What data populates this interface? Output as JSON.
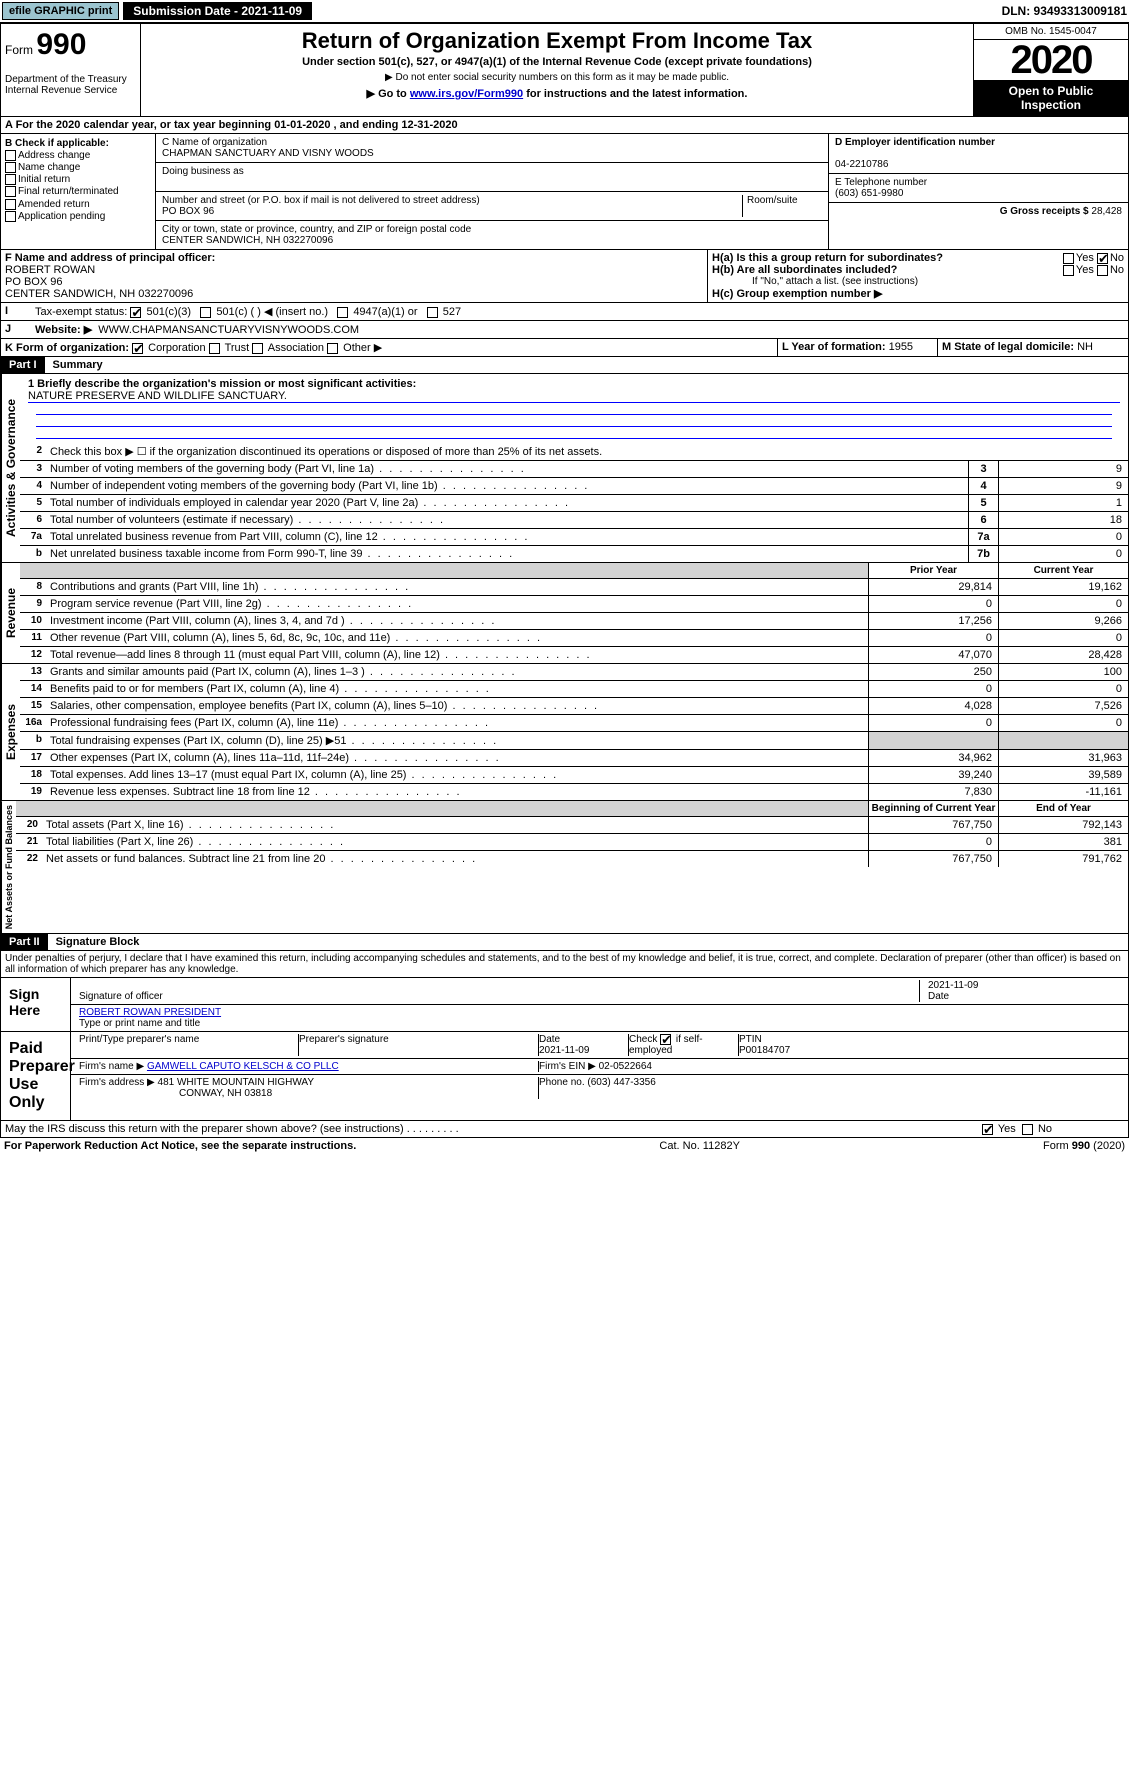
{
  "topbar": {
    "efile": "efile GRAPHIC print",
    "sub": "Submission Date - 2021-11-09",
    "dln": "DLN: 93493313009181"
  },
  "header": {
    "form_label": "Form",
    "form_num": "990",
    "dept": "Department of the Treasury Internal Revenue Service",
    "title": "Return of Organization Exempt From Income Tax",
    "sub": "Under section 501(c), 527, or 4947(a)(1) of the Internal Revenue Code (except private foundations)",
    "note1": "▶ Do not enter social security numbers on this form as it may be made public.",
    "note2": "▶ Go to www.irs.gov/Form990 for instructions and the latest information.",
    "go_link": "www.irs.gov/Form990",
    "omb": "OMB No. 1545-0047",
    "year": "2020",
    "open": "Open to Public Inspection"
  },
  "A": "A For the 2020 calendar year, or tax year beginning 01-01-2020    , and ending 12-31-2020",
  "B": {
    "label": "B Check if applicable:",
    "items": [
      "Address change",
      "Name change",
      "Initial return",
      "Final return/terminated",
      "Amended return",
      "Application pending"
    ]
  },
  "C": {
    "name_label": "C Name of organization",
    "name": "CHAPMAN SANCTUARY AND VISNY WOODS",
    "dba_label": "Doing business as",
    "dba": "",
    "addr_label": "Number and street (or P.O. box if mail is not delivered to street address)",
    "room": "Room/suite",
    "addr": "PO BOX 96",
    "city_label": "City or town, state or province, country, and ZIP or foreign postal code",
    "city": "CENTER SANDWICH, NH  032270096"
  },
  "D": {
    "label": "D Employer identification number",
    "val": "04-2210786"
  },
  "E": {
    "label": "E Telephone number",
    "val": "(603) 651-9980"
  },
  "G": {
    "label": "G Gross receipts $",
    "val": "28,428"
  },
  "F": {
    "label": "F Name and address of principal officer:",
    "name": "ROBERT ROWAN",
    "addr1": "PO BOX 96",
    "addr2": "CENTER SANDWICH, NH  032270096"
  },
  "H": {
    "a": "H(a)  Is this a group return for subordinates?",
    "b": "H(b)  Are all subordinates included?",
    "b_note": "If \"No,\" attach a list. (see instructions)",
    "c": "H(c)  Group exemption number ▶"
  },
  "I": {
    "label": "Tax-exempt status:",
    "opts": [
      "501(c)(3)",
      "501(c) (  ) ◀ (insert no.)",
      "4947(a)(1) or",
      "527"
    ]
  },
  "J": {
    "label": "Website: ▶",
    "val": "WWW.CHAPMANSANCTUARYVISNYWOODS.COM"
  },
  "K": {
    "label": "K Form of organization:",
    "opts": [
      "Corporation",
      "Trust",
      "Association",
      "Other ▶"
    ]
  },
  "L": {
    "label": "L Year of formation:",
    "val": "1955"
  },
  "M": {
    "label": "M State of legal domicile:",
    "val": "NH"
  },
  "part1": {
    "label": "Part I",
    "title": "Summary"
  },
  "gov_label": "Activities & Governance",
  "rev_label": "Revenue",
  "exp_label": "Expenses",
  "net_label": "Net Assets or Fund Balances",
  "mission_q": "1 Briefly describe the organization's mission or most significant activities:",
  "mission": "NATURE PRESERVE AND WILDLIFE SANCTUARY.",
  "lines": {
    "2": "Check this box ▶ ☐  if the organization discontinued its operations or disposed of more than 25% of its net assets.",
    "3": {
      "t": "Number of voting members of the governing body (Part VI, line 1a)",
      "v": "9"
    },
    "4": {
      "t": "Number of independent voting members of the governing body (Part VI, line 1b)",
      "v": "9"
    },
    "5": {
      "t": "Total number of individuals employed in calendar year 2020 (Part V, line 2a)",
      "v": "1"
    },
    "6": {
      "t": "Total number of volunteers (estimate if necessary)",
      "v": "18"
    },
    "7a": {
      "t": "Total unrelated business revenue from Part VIII, column (C), line 12",
      "v": "0"
    },
    "7b": {
      "t": "Net unrelated business taxable income from Form 990-T, line 39",
      "v": "0"
    }
  },
  "cols": {
    "prior": "Prior Year",
    "current": "Current Year",
    "begin": "Beginning of Current Year",
    "end": "End of Year"
  },
  "rev": [
    {
      "n": "8",
      "t": "Contributions and grants (Part VIII, line 1h)",
      "p": "29,814",
      "c": "19,162"
    },
    {
      "n": "9",
      "t": "Program service revenue (Part VIII, line 2g)",
      "p": "0",
      "c": "0"
    },
    {
      "n": "10",
      "t": "Investment income (Part VIII, column (A), lines 3, 4, and 7d )",
      "p": "17,256",
      "c": "9,266"
    },
    {
      "n": "11",
      "t": "Other revenue (Part VIII, column (A), lines 5, 6d, 8c, 9c, 10c, and 11e)",
      "p": "0",
      "c": "0"
    },
    {
      "n": "12",
      "t": "Total revenue—add lines 8 through 11 (must equal Part VIII, column (A), line 12)",
      "p": "47,070",
      "c": "28,428"
    }
  ],
  "exp": [
    {
      "n": "13",
      "t": "Grants and similar amounts paid (Part IX, column (A), lines 1–3 )",
      "p": "250",
      "c": "100"
    },
    {
      "n": "14",
      "t": "Benefits paid to or for members (Part IX, column (A), line 4)",
      "p": "0",
      "c": "0"
    },
    {
      "n": "15",
      "t": "Salaries, other compensation, employee benefits (Part IX, column (A), lines 5–10)",
      "p": "4,028",
      "c": "7,526"
    },
    {
      "n": "16a",
      "t": "Professional fundraising fees (Part IX, column (A), line 11e)",
      "p": "0",
      "c": "0"
    },
    {
      "n": "b",
      "t": "Total fundraising expenses (Part IX, column (D), line 25) ▶51",
      "p": "",
      "c": "",
      "g": true
    },
    {
      "n": "17",
      "t": "Other expenses (Part IX, column (A), lines 11a–11d, 11f–24e)",
      "p": "34,962",
      "c": "31,963"
    },
    {
      "n": "18",
      "t": "Total expenses. Add lines 13–17 (must equal Part IX, column (A), line 25)",
      "p": "39,240",
      "c": "39,589"
    },
    {
      "n": "19",
      "t": "Revenue less expenses. Subtract line 18 from line 12",
      "p": "7,830",
      "c": "-11,161"
    }
  ],
  "net": [
    {
      "n": "20",
      "t": "Total assets (Part X, line 16)",
      "p": "767,750",
      "c": "792,143"
    },
    {
      "n": "21",
      "t": "Total liabilities (Part X, line 26)",
      "p": "0",
      "c": "381"
    },
    {
      "n": "22",
      "t": "Net assets or fund balances. Subtract line 21 from line 20",
      "p": "767,750",
      "c": "791,762"
    }
  ],
  "part2": {
    "label": "Part II",
    "title": "Signature Block"
  },
  "perjury": "Under penalties of perjury, I declare that I have examined this return, including accompanying schedules and statements, and to the best of my knowledge and belief, it is true, correct, and complete. Declaration of preparer (other than officer) is based on all information of which preparer has any knowledge.",
  "sign": {
    "l": "Sign Here",
    "sig": "Signature of officer",
    "date": "2021-11-09",
    "date_l": "Date",
    "name": "ROBERT ROWAN  PRESIDENT",
    "name_l": "Type or print name and title"
  },
  "paid": {
    "l": "Paid Preparer Use Only",
    "h": [
      "Print/Type preparer's name",
      "Preparer's signature",
      "Date",
      "Check ☑ if self-employed",
      "PTIN"
    ],
    "r1": [
      "",
      "",
      "2021-11-09",
      "",
      "P00184707"
    ],
    "firm_l": "Firm's name    ▶",
    "firm": "GAMWELL CAPUTO KELSCH & CO PLLC",
    "ein_l": "Firm's EIN ▶",
    "ein": "02-0522664",
    "addr_l": "Firm's address ▶",
    "addr1": "481 WHITE MOUNTAIN HIGHWAY",
    "addr2": "CONWAY, NH  03818",
    "phone_l": "Phone no.",
    "phone": "(603) 447-3356"
  },
  "discuss": "May the IRS discuss this return with the preparer shown above? (see instructions)",
  "footer": {
    "l": "For Paperwork Reduction Act Notice, see the separate instructions.",
    "m": "Cat. No. 11282Y",
    "r": "Form 990 (2020)"
  }
}
